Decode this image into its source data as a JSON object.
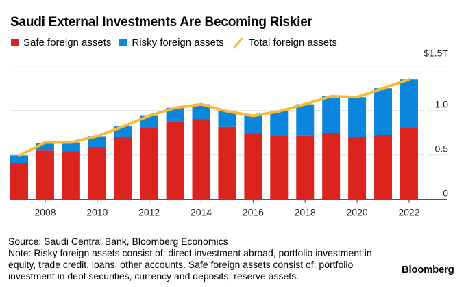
{
  "chart_data": {
    "type": "bar",
    "stacked": true,
    "title": "Saudi External Investments Are Becoming Riskier",
    "categories": [
      "2007",
      "2008",
      "2009",
      "2010",
      "2011",
      "2012",
      "2013",
      "2014",
      "2015",
      "2016",
      "2017",
      "2018",
      "2019",
      "2020",
      "2021",
      "2022"
    ],
    "x_tick_labels": [
      "2008",
      "2010",
      "2012",
      "2014",
      "2016",
      "2018",
      "2020",
      "2022"
    ],
    "y_tick_labels": [
      "0",
      "0.5",
      "1.0",
      "$1.5T"
    ],
    "ylim": [
      0,
      1.5
    ],
    "yunit": "$ trillion",
    "grid": true,
    "legend_position": "top-left",
    "series": [
      {
        "name": "Safe foreign assets",
        "type": "bar",
        "color": "#dc241f",
        "values": [
          0.41,
          0.55,
          0.54,
          0.59,
          0.7,
          0.8,
          0.88,
          0.905,
          0.815,
          0.74,
          0.72,
          0.715,
          0.745,
          0.7,
          0.725,
          0.8
        ]
      },
      {
        "name": "Risky foreign assets",
        "type": "bar",
        "color": "#0a86dc",
        "values": [
          0.085,
          0.08,
          0.1,
          0.12,
          0.12,
          0.14,
          0.15,
          0.165,
          0.175,
          0.2,
          0.27,
          0.355,
          0.415,
          0.45,
          0.525,
          0.55
        ]
      },
      {
        "name": "Total foreign assets",
        "type": "line",
        "color": "#fcb930",
        "values": [
          0.49,
          0.64,
          0.64,
          0.71,
          0.82,
          0.94,
          1.03,
          1.07,
          0.99,
          0.94,
          0.99,
          1.07,
          1.16,
          1.15,
          1.25,
          1.35
        ]
      }
    ]
  },
  "footer": {
    "source": "Source: Saudi Central Bank, Bloomberg Economics",
    "note": "Note: Risky foreign assets consist of: direct investment abroad, portfolio investment in equity, trade credit, loans, other accounts. Safe foreign assets consist of: portfolio investment in debt securities, currency and deposits, reserve assets."
  },
  "brand": "Bloomberg"
}
